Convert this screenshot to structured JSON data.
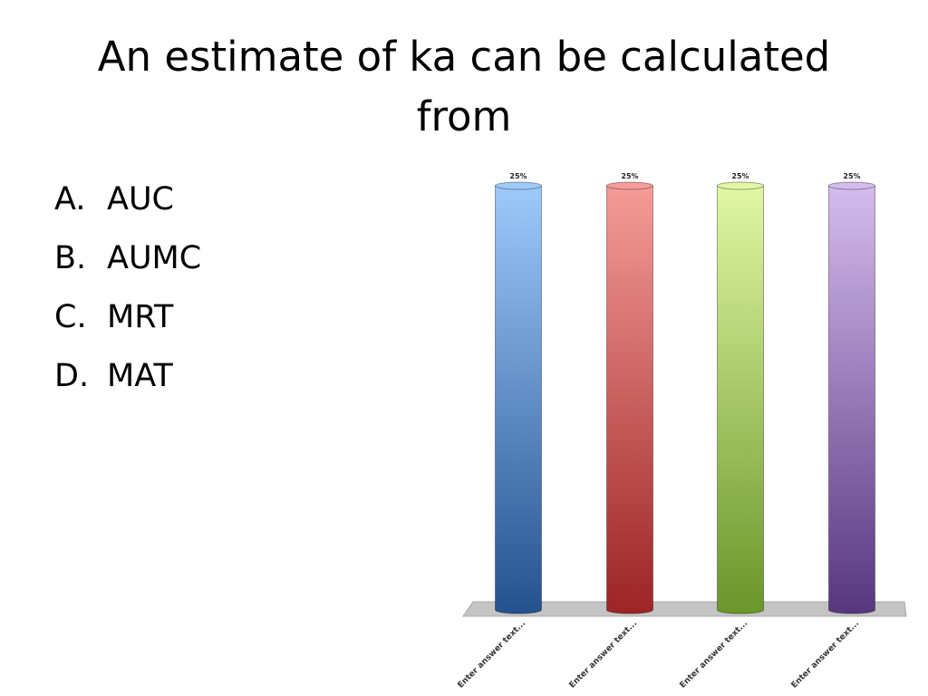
{
  "slide": {
    "title": "An estimate of ka can be calculated from",
    "answers": [
      {
        "letter": "A.",
        "text": "AUC"
      },
      {
        "letter": "B.",
        "text": "AUMC"
      },
      {
        "letter": "C.",
        "text": "MRT"
      },
      {
        "letter": "D.",
        "text": "MAT"
      }
    ]
  },
  "chart_data": {
    "type": "bar",
    "categories": [
      "Enter answer text...",
      "Enter answer text...",
      "Enter answer text...",
      "Enter answer text..."
    ],
    "values": [
      25,
      25,
      25,
      25
    ],
    "value_labels": [
      "25%",
      "25%",
      "25%",
      "25%"
    ],
    "ylim": [
      0,
      25
    ],
    "colors": [
      {
        "top": "#9ec9fb",
        "bottom": "#24528f"
      },
      {
        "top": "#f59c98",
        "bottom": "#9c2424"
      },
      {
        "top": "#e1f7a4",
        "bottom": "#6a962a"
      },
      {
        "top": "#d4bbed",
        "bottom": "#57367f"
      }
    ],
    "floor_color": "#c4c4c4",
    "grid": false,
    "legend": "none"
  }
}
